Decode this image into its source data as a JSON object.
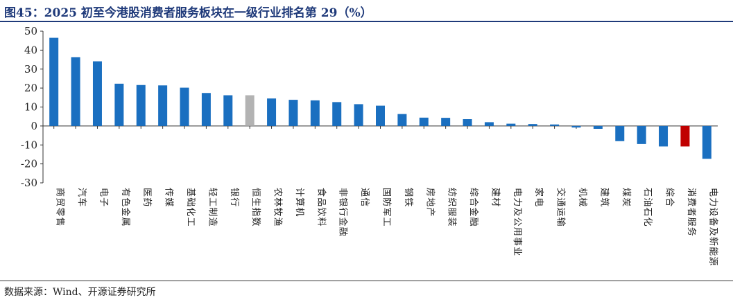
{
  "title": "图45：2025 初至今港股消费者服务板块在一级行业排名第 29（%）",
  "source": "数据来源：Wind、开源证券研究所",
  "colors": {
    "default": "#1a6fc0",
    "benchmark": "#b3b3b3",
    "highlight": "#c00000",
    "title": "#1f3a7a"
  },
  "chart_data": {
    "type": "bar",
    "title": "",
    "xlabel": "",
    "ylabel": "",
    "ylim": [
      -30,
      50
    ],
    "yticks": [
      -30,
      -20,
      -10,
      0,
      10,
      20,
      30,
      40,
      50
    ],
    "grid": false,
    "categories": [
      "商贸零售",
      "汽车",
      "电子",
      "有色金属",
      "医药",
      "传媒",
      "基础化工",
      "轻工制造",
      "银行",
      "恒生指数",
      "农林牧渔",
      "计算机",
      "食品饮料",
      "非银行金融",
      "通信",
      "国防军工",
      "钢铁",
      "房地产",
      "纺织服装",
      "综合金融",
      "建材",
      "电力及公用事业",
      "家电",
      "交通运输",
      "机械",
      "建筑",
      "煤炭",
      "石油石化",
      "综合",
      "消费者服务",
      "电力设备及新能源"
    ],
    "values": [
      46.5,
      36.3,
      34.1,
      22.3,
      21.6,
      21.4,
      20.2,
      17.4,
      16.2,
      16.2,
      14.5,
      13.8,
      13.5,
      12.6,
      11.5,
      10.7,
      6.3,
      4.4,
      4.3,
      3.6,
      2.0,
      1.2,
      1.0,
      0.8,
      -0.8,
      -1.5,
      -8.0,
      -9.5,
      -10.8,
      -10.8,
      -17.3
    ],
    "highlight": {
      "恒生指数": "benchmark",
      "消费者服务": "highlight"
    }
  }
}
